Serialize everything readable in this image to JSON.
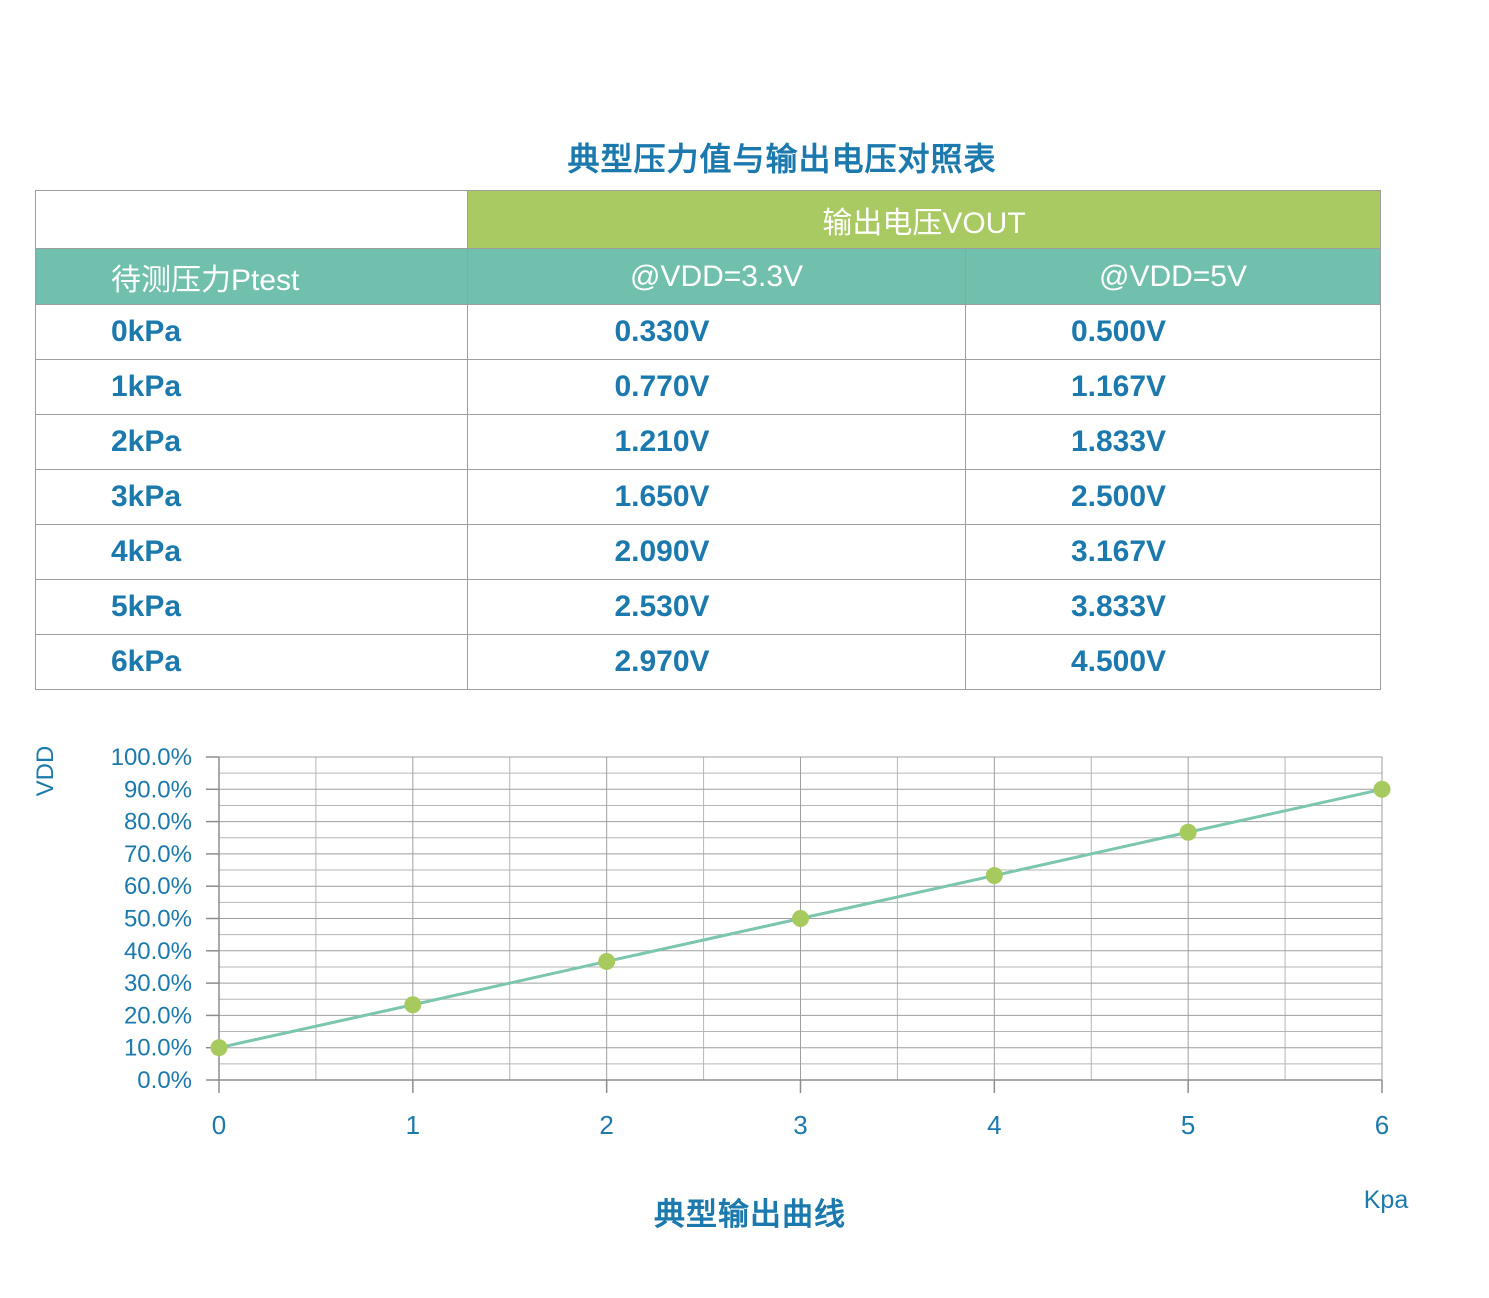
{
  "page": {
    "title": "典型压力值与输出电压对照表"
  },
  "table": {
    "vout_label": "输出电压VOUT",
    "pressure_label": "待测压力Ptest",
    "vdd33_label": "@VDD=3.3V",
    "vdd5_label": "@VDD=5V",
    "rows": [
      {
        "pressure": "0kPa",
        "vout_33": "0.330V",
        "vout_5": "0.500V"
      },
      {
        "pressure": "1kPa",
        "vout_33": "0.770V",
        "vout_5": "1.167V"
      },
      {
        "pressure": "2kPa",
        "vout_33": "1.210V",
        "vout_5": "1.833V"
      },
      {
        "pressure": "3kPa",
        "vout_33": "1.650V",
        "vout_5": "2.500V"
      },
      {
        "pressure": "4kPa",
        "vout_33": "2.090V",
        "vout_5": "3.167V"
      },
      {
        "pressure": "5kPa",
        "vout_33": "2.530V",
        "vout_5": "3.833V"
      },
      {
        "pressure": "6kPa",
        "vout_33": "2.970V",
        "vout_5": "4.500V"
      }
    ]
  },
  "chart_data": {
    "type": "line",
    "title": "典型输出曲线",
    "xlabel": "Kpa",
    "ylabel": "VDD",
    "x": [
      0,
      1,
      2,
      3,
      4,
      5,
      6
    ],
    "y_percent": [
      10.0,
      23.3,
      36.7,
      50.0,
      63.3,
      76.7,
      90.0
    ],
    "xlim": [
      0,
      6
    ],
    "ylim_percent": [
      0,
      100
    ],
    "y_tick_labels": [
      "100.0%",
      "90.0%",
      "80.0%",
      "70.0%",
      "60.0%",
      "50.0%",
      "40.0%",
      "30.0%",
      "20.0%",
      "10.0%",
      "0.0%"
    ],
    "x_tick_labels": [
      "0",
      "1",
      "2",
      "3",
      "4",
      "5",
      "6"
    ],
    "y_major_step_percent": 10,
    "y_minor_step_percent": 5,
    "x_major_step": 1,
    "x_minor_step": 0.5,
    "grid": true,
    "legend": false
  },
  "colors": {
    "header_green": "#a9ca62",
    "header_teal": "#71c0ae",
    "text_blue": "#1b79ad",
    "table_border": "#9e9e9e",
    "grid_minor": "#b6b6b6",
    "grid_major": "#9f9f9f",
    "axis_line": "#8d8d8d",
    "curve_line": "#7cc5ae",
    "marker_fill": "#a6ca5e",
    "header_text": "#ffffff"
  }
}
